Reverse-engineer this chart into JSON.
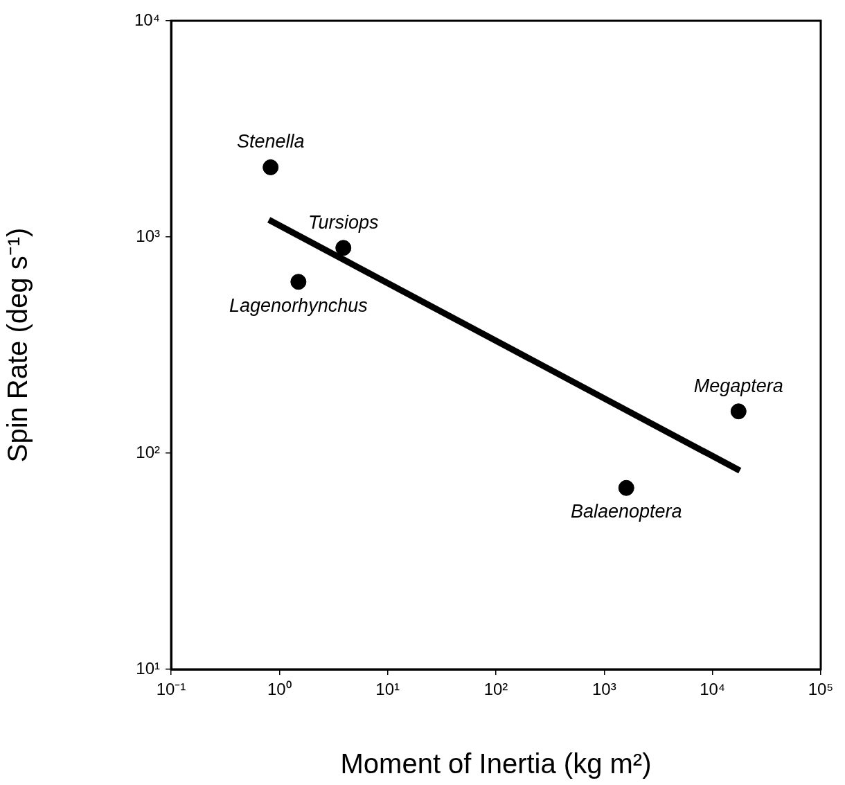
{
  "chart_data": {
    "type": "scatter",
    "xlabel": "Moment of Inertia (kg m²)",
    "ylabel": "Spin Rate (deg s⁻¹)",
    "log": "xy",
    "grid": false,
    "legend": false,
    "xlim": [
      0.1,
      100000
    ],
    "ylim": [
      10,
      10000
    ],
    "xticks": [
      {
        "value": 0.1,
        "label": "10⁻¹"
      },
      {
        "value": 1,
        "label": "10⁰"
      },
      {
        "value": 10,
        "label": "10¹"
      },
      {
        "value": 100,
        "label": "10²"
      },
      {
        "value": 1000,
        "label": "10³"
      },
      {
        "value": 10000,
        "label": "10⁴"
      },
      {
        "value": 100000,
        "label": "10⁵"
      }
    ],
    "yticks": [
      {
        "value": 10,
        "label": "10¹"
      },
      {
        "value": 100,
        "label": "10²"
      },
      {
        "value": 1000,
        "label": "10³"
      },
      {
        "value": 10000,
        "label": "10⁴"
      }
    ],
    "series": [
      {
        "color": "#000000",
        "marker": "circle",
        "x": [
          0.83,
          1.5,
          3.9,
          1600,
          17400
        ],
        "values": [
          2100,
          620,
          890,
          69,
          156
        ]
      },
      {
        "type": "line",
        "color": "#000000",
        "marker": "none",
        "line_style": "solid",
        "x": [
          0.8,
          17900
        ],
        "values": [
          1200,
          83
        ]
      }
    ],
    "annotations": [
      {
        "text": "Stenella",
        "x": 0.83,
        "y": 2100
      },
      {
        "text": "Lagenorhynchus",
        "x": 1.5,
        "y": 620
      },
      {
        "text": "Tursiops",
        "x": 3.9,
        "y": 890
      },
      {
        "text": "Balaenoptera",
        "x": 1600,
        "y": 69
      },
      {
        "text": "Megaptera",
        "x": 17400,
        "y": 156
      }
    ]
  }
}
